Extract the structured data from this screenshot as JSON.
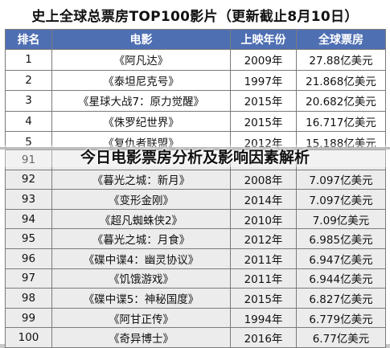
{
  "title": "史上全球总票房TOP100影片（更新截止8月10日）",
  "headers": [
    "排名",
    "电影",
    "上映年份",
    "全球票房"
  ],
  "top_rows": [
    [
      "1",
      "《阿凡达》",
      "2009年",
      "27.88亿美元"
    ],
    [
      "2",
      "《泰坦尼克号》",
      "1997年",
      "21.868亿美元"
    ],
    [
      "3",
      "《星球大战7：原力觉醒》",
      "2015年",
      "20.682亿美元"
    ],
    [
      "4",
      "《侏罗纪世界》",
      "2015年",
      "16.717亿美元"
    ],
    [
      "5",
      "《复仇者联盟》",
      "2012年",
      "15.188亿美元"
    ]
  ],
  "bottom_rows": [
    [
      "91",
      "",
      "",
      ""
    ],
    [
      "92",
      "《暮光之城：新月》",
      "2008年",
      "7.097亿美元"
    ],
    [
      "93",
      "《变形金刚》",
      "2014年",
      "7.097亿美元"
    ],
    [
      "94",
      "《超凡蜘蛛侠2》",
      "2010年",
      "7.09亿美元"
    ],
    [
      "95",
      "《暮光之城：月食》",
      "2012年",
      "6.985亿美元"
    ],
    [
      "96",
      "《碟中谍4：幽灵协议》",
      "2011年",
      "6.947亿美元"
    ],
    [
      "97",
      "《饥饿游戏》",
      "2011年",
      "6.944亿美元"
    ],
    [
      "98",
      "《碟中谍5：神秘国度》",
      "2015年",
      "6.827亿美元"
    ],
    [
      "99",
      "《阿甘正传》",
      "1994年",
      "6.779亿美元"
    ],
    [
      "100",
      "《奇异博士》",
      "2016年",
      "6.77亿美元"
    ]
  ],
  "overlay_caption": "今日电影票房分析及影响因素解析"
}
